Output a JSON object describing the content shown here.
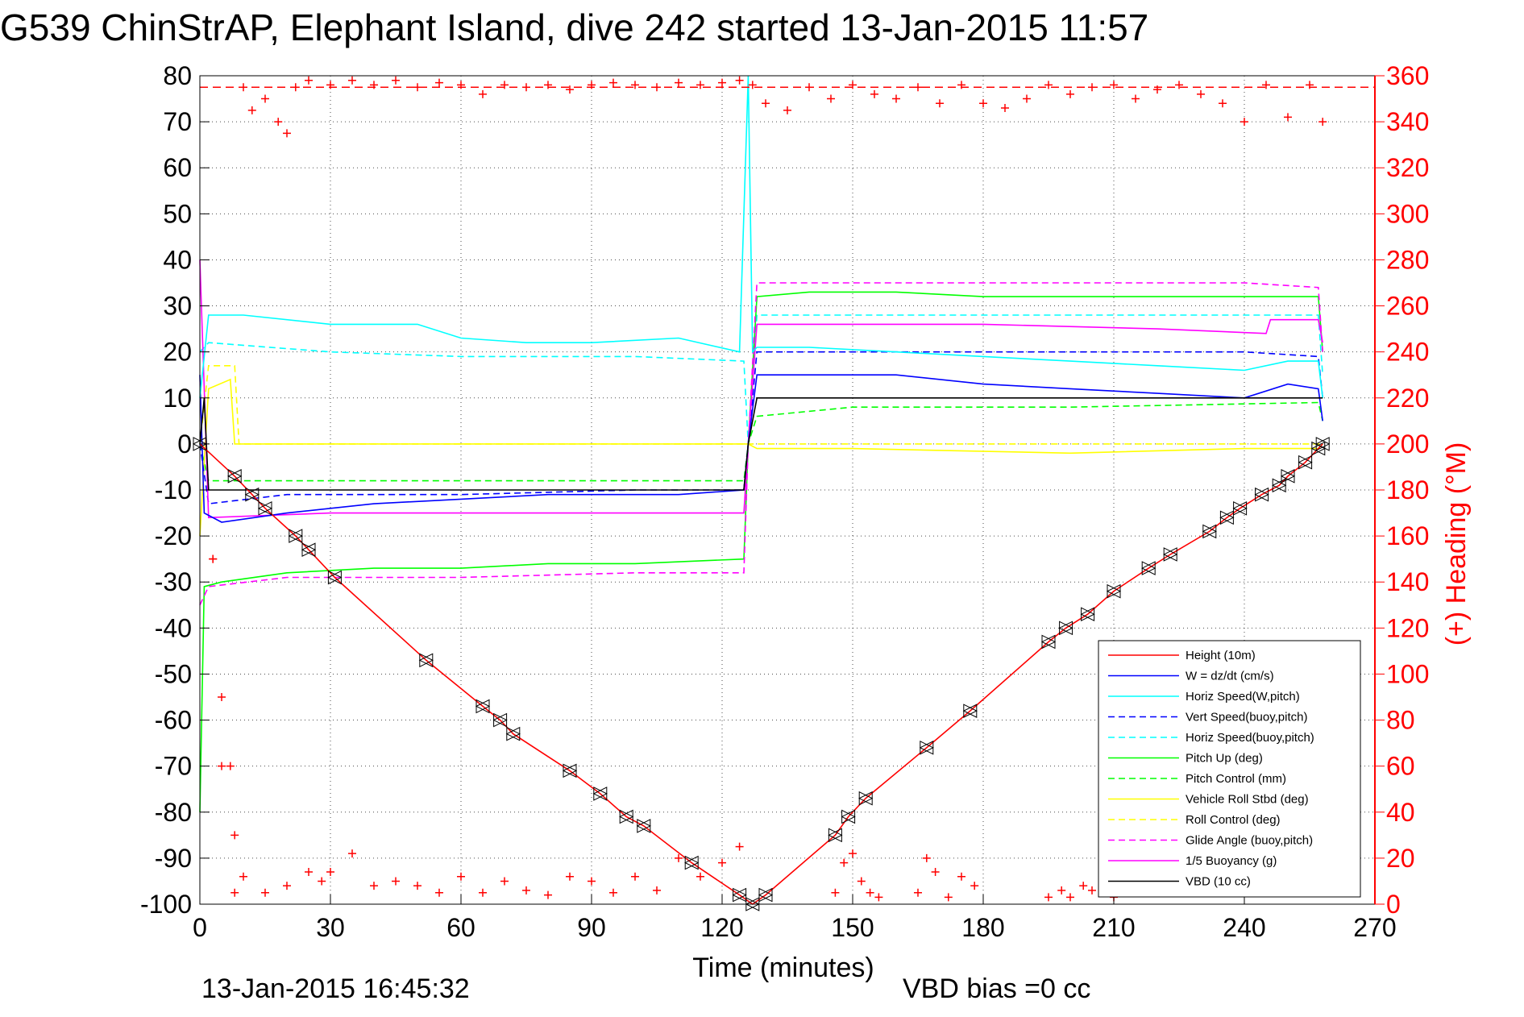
{
  "title": "G539 ChinStrAP, Elephant Island, dive 242 started 13-Jan-2015 11:57",
  "footer": {
    "timestamp": "13-Jan-2015 16:45:32",
    "vbd_bias": "VBD bias =0 cc"
  },
  "chart_data": {
    "type": "line",
    "xlabel": "Time (minutes)",
    "ylabel_left": "",
    "ylabel_right": "(+) Heading (°M)",
    "xlim": [
      0,
      270
    ],
    "ylim_left": [
      -100,
      80
    ],
    "ylim_right": [
      0,
      360
    ],
    "xticks": [
      0,
      30,
      60,
      90,
      120,
      150,
      180,
      210,
      240,
      270
    ],
    "yticks_left": [
      80,
      70,
      60,
      50,
      40,
      30,
      20,
      10,
      0,
      -10,
      -20,
      -30,
      -40,
      -50,
      -60,
      -70,
      -80,
      -90,
      -100
    ],
    "yticks_right": [
      360,
      340,
      320,
      300,
      280,
      260,
      240,
      220,
      200,
      180,
      160,
      140,
      120,
      100,
      80,
      60,
      40,
      20,
      0
    ],
    "grid": true,
    "legend_position": "lower-right",
    "colors": {
      "red": "#ff0000",
      "blue": "#0000ff",
      "cyan": "#00ffff",
      "green": "#00ff00",
      "yellow": "#ffff00",
      "magenta": "#ff00ff",
      "black": "#000000"
    },
    "series": [
      {
        "name": "Height (10m)",
        "color": "#ff0000",
        "style": "solid",
        "x": [
          0,
          8,
          12,
          15,
          22,
          25,
          31,
          52,
          65,
          69,
          72,
          85,
          92,
          98,
          102,
          113,
          124,
          127,
          130,
          146,
          149,
          153,
          167,
          177,
          195,
          199,
          204,
          210,
          218,
          223,
          232,
          236,
          239,
          244,
          248,
          250,
          254,
          257,
          258
        ],
        "y": [
          0,
          -7,
          -11,
          -14,
          -20,
          -23,
          -29,
          -47,
          -57,
          -60,
          -63,
          -71,
          -76,
          -81,
          -83,
          -91,
          -98,
          -100,
          -98,
          -85,
          -81,
          -77,
          -66,
          -58,
          -43,
          -40,
          -37,
          -32,
          -27,
          -24,
          -19,
          -16,
          -14,
          -11,
          -9,
          -7,
          -4,
          -1,
          0
        ]
      },
      {
        "name": "W = dz/dt (cm/s)",
        "color": "#0000ff",
        "style": "solid",
        "x": [
          0,
          1,
          5,
          20,
          40,
          60,
          80,
          100,
          110,
          125,
          126,
          128,
          140,
          160,
          180,
          200,
          220,
          240,
          250,
          257,
          258
        ],
        "y": [
          15,
          -15,
          -17,
          -15,
          -13,
          -12,
          -11,
          -11,
          -11,
          -10,
          0,
          15,
          15,
          15,
          13,
          12,
          11,
          10,
          13,
          12,
          5
        ]
      },
      {
        "name": "Horiz Speed(W,pitch)",
        "color": "#00ffff",
        "style": "solid",
        "x": [
          0,
          2,
          10,
          30,
          50,
          60,
          75,
          90,
          110,
          124,
          126,
          127,
          128,
          140,
          160,
          180,
          200,
          220,
          240,
          250,
          257,
          258
        ],
        "y": [
          10,
          28,
          28,
          26,
          26,
          23,
          22,
          22,
          23,
          20,
          80,
          20,
          21,
          21,
          20,
          19,
          18,
          17,
          16,
          18,
          18,
          10
        ]
      },
      {
        "name": "Vert Speed(buoy,pitch)",
        "color": "#0000ff",
        "style": "dashed",
        "x": [
          0,
          2,
          20,
          60,
          100,
          125,
          126,
          128,
          160,
          200,
          240,
          257,
          258
        ],
        "y": [
          0,
          -13,
          -11,
          -11,
          -10,
          -10,
          0,
          20,
          20,
          20,
          20,
          19,
          10
        ]
      },
      {
        "name": "Horiz Speed(buoy,pitch)",
        "color": "#00ffff",
        "style": "dashed",
        "x": [
          0,
          2,
          30,
          60,
          100,
          125,
          126,
          128,
          160,
          200,
          240,
          257,
          258
        ],
        "y": [
          20,
          22,
          20,
          19,
          19,
          18,
          0,
          28,
          28,
          28,
          28,
          28,
          15
        ]
      },
      {
        "name": "Pitch Up (deg)",
        "color": "#00ff00",
        "style": "solid",
        "x": [
          0,
          1,
          5,
          20,
          40,
          60,
          80,
          100,
          125,
          126,
          128,
          140,
          160,
          180,
          200,
          220,
          240,
          257,
          258
        ],
        "y": [
          -80,
          -31,
          -30,
          -28,
          -27,
          -27,
          -26,
          -26,
          -25,
          0,
          32,
          33,
          33,
          32,
          32,
          32,
          32,
          32,
          20
        ]
      },
      {
        "name": "Pitch Control (mm)",
        "color": "#00ff00",
        "style": "dashed",
        "x": [
          0,
          2,
          60,
          125,
          126,
          128,
          150,
          200,
          257,
          258
        ],
        "y": [
          0,
          -8,
          -8,
          -8,
          0,
          6,
          8,
          8,
          9,
          5
        ]
      },
      {
        "name": "Vehicle Roll Stbd (deg)",
        "color": "#ffff00",
        "style": "solid",
        "x": [
          0,
          2,
          7,
          8,
          20,
          60,
          100,
          120,
          125,
          126,
          128,
          150,
          200,
          240,
          257,
          258
        ],
        "y": [
          -20,
          12,
          14,
          0,
          0,
          0,
          0,
          0,
          0,
          0,
          -1,
          -1,
          -2,
          -1,
          -1,
          0
        ]
      },
      {
        "name": "Roll Control (deg)",
        "color": "#ffff00",
        "style": "dashed",
        "x": [
          0,
          2,
          8,
          9,
          60,
          125,
          126,
          128,
          200,
          257,
          258
        ],
        "y": [
          0,
          17,
          17,
          0,
          0,
          0,
          0,
          0,
          0,
          0,
          0
        ]
      },
      {
        "name": "Glide Angle (buoy,pitch)",
        "color": "#ff00ff",
        "style": "dashed",
        "x": [
          0,
          2,
          20,
          60,
          100,
          125,
          126,
          128,
          160,
          200,
          240,
          257,
          258
        ],
        "y": [
          -35,
          -31,
          -29,
          -29,
          -28,
          -28,
          0,
          35,
          35,
          35,
          35,
          34,
          20
        ]
      },
      {
        "name": "1/5 Buoyancy (g)",
        "color": "#ff00ff",
        "style": "solid",
        "x": [
          0,
          2,
          30,
          60,
          100,
          125,
          126,
          128,
          180,
          220,
          245,
          246,
          257,
          258
        ],
        "y": [
          40,
          -16,
          -15,
          -15,
          -15,
          -15,
          0,
          26,
          26,
          25,
          24,
          27,
          27,
          22
        ]
      },
      {
        "name": "VBD (10 cc)",
        "color": "#000000",
        "style": "solid",
        "x": [
          0,
          1,
          2,
          125,
          126,
          128,
          257,
          258
        ],
        "y": [
          0,
          10,
          -10,
          -10,
          0,
          10,
          10,
          10
        ]
      }
    ],
    "heading_series": {
      "name": "(+) Heading (°M)",
      "color": "#ff0000",
      "marker": "+",
      "x": [
        3,
        5,
        7,
        8,
        10,
        12,
        15,
        18,
        20,
        22,
        25,
        30,
        35,
        40,
        45,
        50,
        55,
        60,
        65,
        70,
        75,
        80,
        85,
        90,
        95,
        100,
        105,
        110,
        115,
        120,
        124,
        127,
        130,
        135,
        140,
        145,
        150,
        155,
        160,
        165,
        170,
        175,
        180,
        185,
        190,
        195,
        200,
        205,
        210,
        215,
        220,
        225,
        230,
        235,
        240,
        245,
        250,
        255,
        258
      ],
      "y": [
        150,
        90,
        60,
        30,
        355,
        345,
        350,
        340,
        335,
        355,
        358,
        356,
        358,
        356,
        358,
        355,
        357,
        356,
        352,
        356,
        355,
        356,
        354,
        356,
        357,
        356,
        355,
        357,
        356,
        357,
        358,
        356,
        348,
        345,
        355,
        350,
        356,
        352,
        350,
        355,
        348,
        356,
        348,
        346,
        350,
        356,
        352,
        355,
        356,
        350,
        354,
        356,
        352,
        348,
        340,
        356,
        342,
        356,
        340
      ],
      "x_bottom": [
        3,
        5,
        8,
        10,
        15,
        20,
        25,
        28,
        30,
        35,
        40,
        45,
        50,
        55,
        60,
        65,
        70,
        75,
        80,
        85,
        90,
        95,
        100,
        105,
        110,
        115,
        120,
        124,
        146,
        148,
        150,
        152,
        154,
        156,
        165,
        167,
        169,
        172,
        175,
        178,
        195,
        198,
        200,
        203,
        205,
        210
      ],
      "y_bottom": [
        150,
        60,
        5,
        12,
        5,
        8,
        14,
        10,
        14,
        22,
        8,
        10,
        8,
        5,
        12,
        5,
        10,
        6,
        4,
        12,
        10,
        5,
        12,
        6,
        20,
        12,
        18,
        25,
        5,
        18,
        22,
        10,
        5,
        3,
        5,
        20,
        14,
        3,
        12,
        8,
        3,
        6,
        3,
        8,
        6,
        3
      ]
    },
    "heading_reference": {
      "value": 355,
      "color": "#ff0000",
      "style": "dashed"
    }
  }
}
